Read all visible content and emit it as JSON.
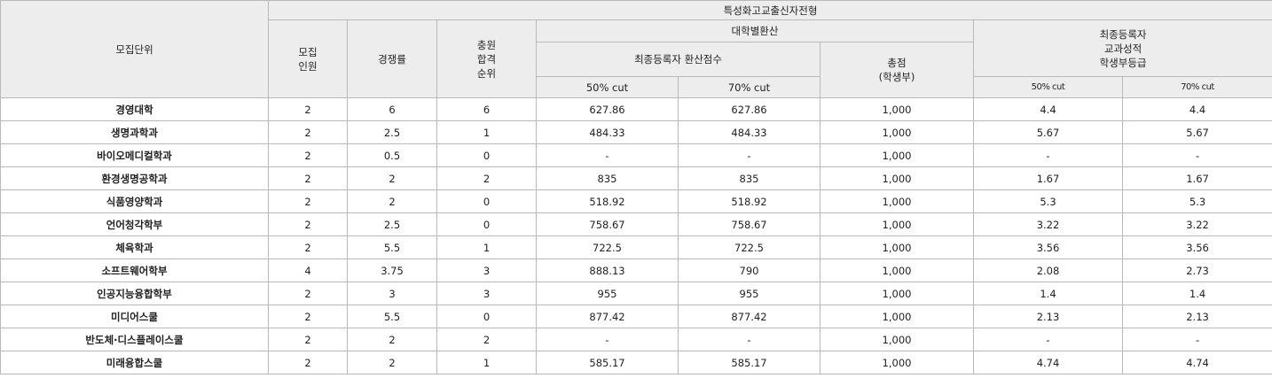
{
  "table": {
    "header": {
      "unit": "모집단위",
      "group": "특성화고교출신자전형",
      "quota": "모집\n인원",
      "competition": "경쟁률",
      "waitlist": "충원\n합격\n순위",
      "converted": "대학별환산",
      "grade": "최종등록자\n교과성적\n학생부등급",
      "converted_score": "최종등록자 환산점수",
      "total": "총점\n(학생부)",
      "cuts": [
        "50% cut",
        "70% cut",
        "50% cut",
        "70% cut"
      ]
    },
    "rows": [
      [
        "경영대학",
        "2",
        "6",
        "6",
        "627.86",
        "627.86",
        "1,000",
        "4.4",
        "4.4"
      ],
      [
        "생명과학과",
        "2",
        "2.5",
        "1",
        "484.33",
        "484.33",
        "1,000",
        "5.67",
        "5.67"
      ],
      [
        "바이오메디컬학과",
        "2",
        "0.5",
        "0",
        "-",
        "-",
        "1,000",
        "-",
        "-"
      ],
      [
        "환경생명공학과",
        "2",
        "2",
        "2",
        "835",
        "835",
        "1,000",
        "1.67",
        "1.67"
      ],
      [
        "식품영양학과",
        "2",
        "2",
        "0",
        "518.92",
        "518.92",
        "1,000",
        "5.3",
        "5.3"
      ],
      [
        "언어청각학부",
        "2",
        "2.5",
        "0",
        "758.67",
        "758.67",
        "1,000",
        "3.22",
        "3.22"
      ],
      [
        "체육학과",
        "2",
        "5.5",
        "1",
        "722.5",
        "722.5",
        "1,000",
        "3.56",
        "3.56"
      ],
      [
        "소프트웨어학부",
        "4",
        "3.75",
        "3",
        "888.13",
        "790",
        "1,000",
        "2.08",
        "2.73"
      ],
      [
        "인공지능융합학부",
        "2",
        "3",
        "3",
        "955",
        "955",
        "1,000",
        "1.4",
        "1.4"
      ],
      [
        "미디어스쿨",
        "2",
        "5.5",
        "0",
        "877.42",
        "877.42",
        "1,000",
        "2.13",
        "2.13"
      ],
      [
        "반도체·디스플레이스쿨",
        "2",
        "2",
        "2",
        "-",
        "-",
        "1,000",
        "-",
        "-"
      ],
      [
        "미래융합스쿨",
        "2",
        "2",
        "1",
        "585.17",
        "585.17",
        "1,000",
        "4.74",
        "4.74"
      ]
    ]
  }
}
